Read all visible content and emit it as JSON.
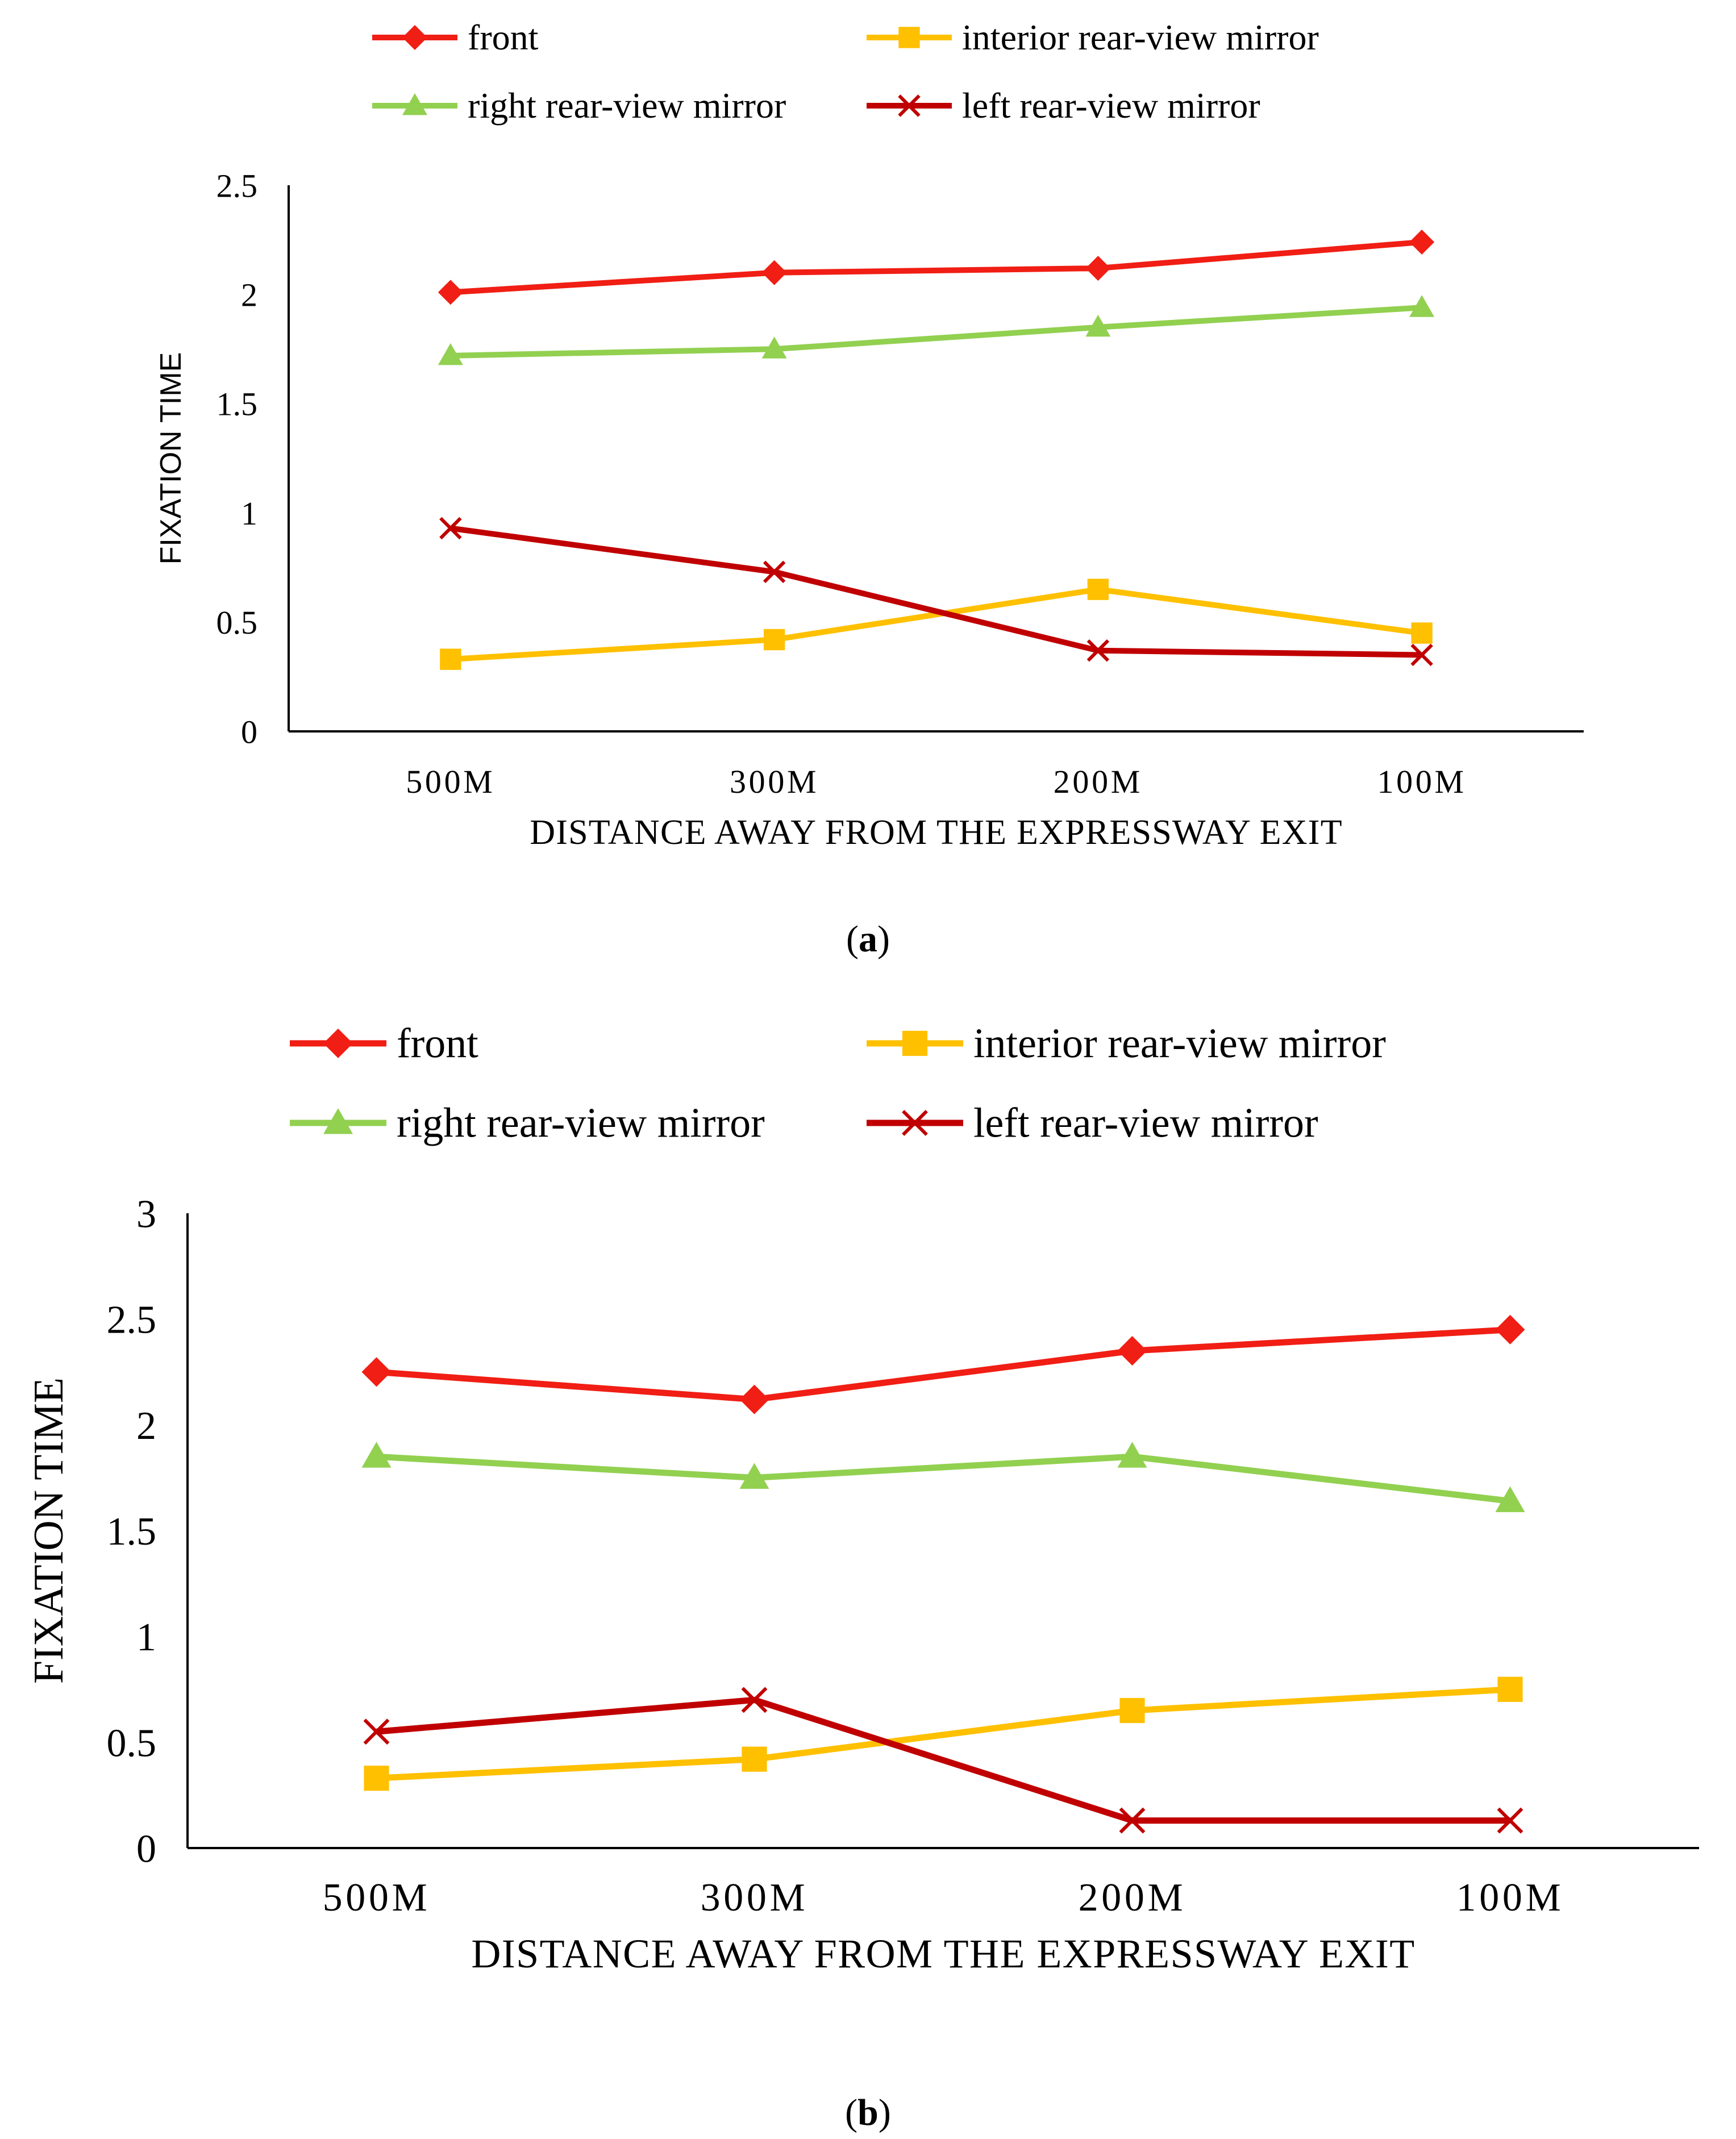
{
  "chart_data": [
    {
      "type": "line",
      "panel_label": "a",
      "categories": [
        "500M",
        "300M",
        "200M",
        "100M"
      ],
      "series": [
        {
          "name": "front",
          "color": "#f01e14",
          "marker": "diamond",
          "values": [
            2.01,
            2.1,
            2.12,
            2.24
          ]
        },
        {
          "name": "interior rear-view mirror",
          "color": "#ffc000",
          "marker": "square",
          "values": [
            0.33,
            0.42,
            0.65,
            0.45
          ]
        },
        {
          "name": "right rear-view mirror",
          "color": "#92d050",
          "marker": "triangle",
          "values": [
            1.72,
            1.75,
            1.85,
            1.94
          ]
        },
        {
          "name": "left rear-view mirror",
          "color": "#c00000",
          "marker": "x",
          "values": [
            0.93,
            0.73,
            0.37,
            0.35
          ]
        }
      ],
      "xlabel": "DISTANCE AWAY FROM THE EXPRESSWAY EXIT",
      "ylabel": "FIXATION TIME",
      "ylim": [
        0,
        2.5
      ],
      "yticks": [
        "0",
        "0.5",
        "1",
        "1.5",
        "2",
        "2.5"
      ],
      "legend_position": "top"
    },
    {
      "type": "line",
      "panel_label": "b",
      "categories": [
        "500M",
        "300M",
        "200M",
        "100M"
      ],
      "series": [
        {
          "name": "front",
          "color": "#f01e14",
          "marker": "diamond",
          "values": [
            2.25,
            2.12,
            2.35,
            2.45
          ]
        },
        {
          "name": "interior rear-view mirror",
          "color": "#ffc000",
          "marker": "square",
          "values": [
            0.33,
            0.42,
            0.65,
            0.75
          ]
        },
        {
          "name": "right rear-view mirror",
          "color": "#92d050",
          "marker": "triangle",
          "values": [
            1.85,
            1.75,
            1.85,
            1.64
          ]
        },
        {
          "name": "left rear-view mirror",
          "color": "#c00000",
          "marker": "x",
          "values": [
            0.55,
            0.7,
            0.13,
            0.13
          ]
        }
      ],
      "xlabel": "DISTANCE AWAY FROM THE EXPRESSWAY EXIT",
      "ylabel": "FIXATION TIME",
      "ylim": [
        0,
        3
      ],
      "yticks": [
        "0",
        "0.5",
        "1",
        "1.5",
        "2",
        "2.5",
        "3"
      ],
      "legend_position": "top"
    }
  ]
}
